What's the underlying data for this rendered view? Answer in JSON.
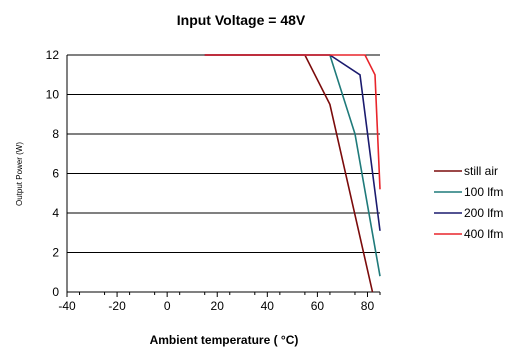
{
  "chart_data": {
    "type": "line",
    "title": "Input Voltage = 48V",
    "xlabel": "Ambient temperature ( °C)",
    "ylabel": "Output Power (W)",
    "xlim": [
      -40,
      85
    ],
    "ylim": [
      0,
      12
    ],
    "xticks": [
      "-40",
      "-20",
      "0",
      "20",
      "40",
      "60",
      "80"
    ],
    "yticks": [
      "0",
      "2",
      "4",
      "6",
      "8",
      "10",
      "12"
    ],
    "grid": "horizontal",
    "legend_position": "right",
    "series": [
      {
        "name": "still air",
        "color": "#7b0b0b",
        "x": [
          15,
          55,
          65,
          82
        ],
        "y": [
          12,
          12,
          9.5,
          0
        ]
      },
      {
        "name": "100 lfm",
        "color": "#1f7a7a",
        "x": [
          15,
          65,
          75,
          85
        ],
        "y": [
          12,
          12,
          8,
          0.8
        ]
      },
      {
        "name": "200 lfm",
        "color": "#1a1a6e",
        "x": [
          15,
          65,
          77,
          85
        ],
        "y": [
          12,
          12,
          11,
          3.1
        ]
      },
      {
        "name": "400 lfm",
        "color": "#e8252b",
        "x": [
          15,
          79,
          83,
          85
        ],
        "y": [
          12,
          12,
          11,
          5.2
        ]
      }
    ]
  }
}
